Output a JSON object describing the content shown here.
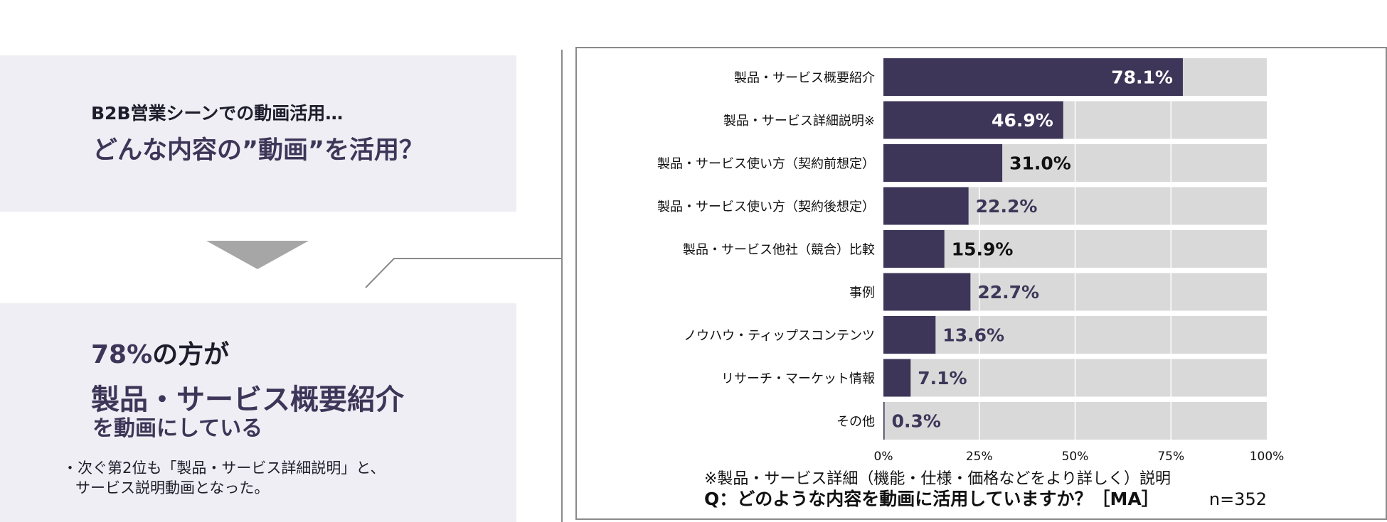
{
  "left": {
    "lead_small": "B2B営業シーンでの動画活用…",
    "lead_big": "どんな内容の”動画”を活用？",
    "result_pct": "78%",
    "result_suffix": "の方が",
    "result_highlight": "製品・サービス概要紹介",
    "result_tail": "を動画にしている",
    "notes": [
      "・次ぐ第2位も「製品・サービス詳細説明」と、\nサービス説明動画となった。"
    ]
  },
  "colors": {
    "bar": "#3d3658",
    "track": "#d9d9d9",
    "panel": "#efeef4",
    "arrow": "#a6a6a6"
  },
  "chart_data": {
    "type": "bar",
    "orientation": "horizontal",
    "categories": [
      "製品・サービス概要紹介",
      "製品・サービス詳細説明※",
      "製品・サービス使い方（契約前想定）",
      "製品・サービス使い方（契約後想定）",
      "製品・サービス他社（競合）比較",
      "事例",
      "ノウハウ・ティップスコンテンツ",
      "リサーチ・マーケット情報",
      "その他"
    ],
    "values": [
      78.1,
      46.9,
      31.0,
      22.2,
      15.9,
      22.7,
      13.6,
      7.1,
      0.3
    ],
    "value_labels": [
      "78.1%",
      "46.9%",
      "31.0%",
      "22.2%",
      "15.9%",
      "22.7%",
      "13.6%",
      "7.1%",
      "0.3%"
    ],
    "xlim": [
      0,
      100
    ],
    "x_ticks": [
      "0%",
      "25%",
      "50%",
      "75%",
      "100%"
    ],
    "grid": true,
    "footnote": "※製品・サービス詳細（機能・仕様・価格などをより詳しく）説明",
    "question": "Q：どのような内容を動画に活用していますか？［MA］",
    "sample": "n=352"
  }
}
